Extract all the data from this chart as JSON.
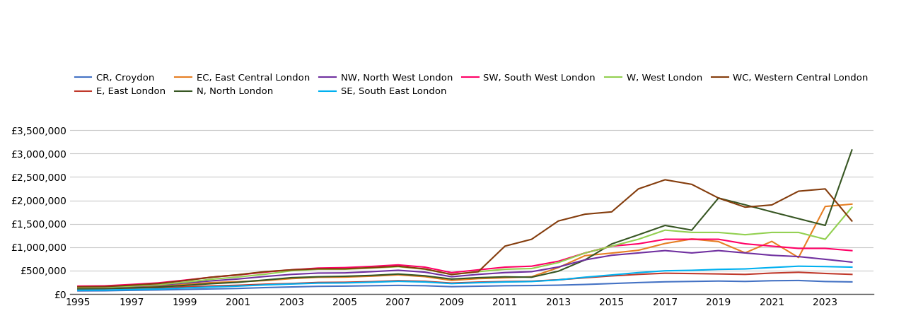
{
  "years": [
    1995,
    1996,
    1997,
    1998,
    1999,
    2000,
    2001,
    2002,
    2003,
    2004,
    2005,
    2006,
    2007,
    2008,
    2009,
    2010,
    2011,
    2012,
    2013,
    2014,
    2015,
    2016,
    2017,
    2018,
    2019,
    2020,
    2021,
    2022,
    2023,
    2024
  ],
  "series": [
    {
      "label": "CR, Croydon",
      "color": "#4472c4",
      "values": [
        68000,
        70000,
        80000,
        88000,
        100000,
        110000,
        120000,
        138000,
        152000,
        165000,
        170000,
        178000,
        185000,
        178000,
        158000,
        168000,
        178000,
        182000,
        190000,
        205000,
        225000,
        245000,
        262000,
        270000,
        278000,
        270000,
        285000,
        290000,
        268000,
        260000
      ]
    },
    {
      "label": "E, East London",
      "color": "#c0392b",
      "values": [
        108000,
        110000,
        122000,
        135000,
        155000,
        172000,
        188000,
        210000,
        225000,
        248000,
        252000,
        265000,
        285000,
        272000,
        235000,
        255000,
        268000,
        275000,
        305000,
        348000,
        388000,
        420000,
        445000,
        438000,
        430000,
        420000,
        448000,
        465000,
        440000,
        420000
      ]
    },
    {
      "label": "EC, East Central London",
      "color": "#e67e22",
      "values": [
        125000,
        130000,
        148000,
        168000,
        208000,
        245000,
        265000,
        288000,
        330000,
        358000,
        362000,
        382000,
        410000,
        372000,
        292000,
        330000,
        348000,
        370000,
        565000,
        820000,
        875000,
        935000,
        1080000,
        1175000,
        1120000,
        880000,
        1125000,
        780000,
        1870000,
        1920000
      ]
    },
    {
      "label": "N, North London",
      "color": "#375623",
      "values": [
        112000,
        115000,
        132000,
        150000,
        185000,
        222000,
        252000,
        300000,
        350000,
        370000,
        380000,
        398000,
        428000,
        390000,
        320000,
        350000,
        368000,
        360000,
        488000,
        730000,
        1070000,
        1265000,
        1465000,
        1365000,
        2050000,
        1905000,
        1755000,
        1610000,
        1465000,
        3075000
      ]
    },
    {
      "label": "NW, North West London",
      "color": "#7030a0",
      "values": [
        138000,
        142000,
        165000,
        190000,
        235000,
        282000,
        322000,
        375000,
        420000,
        448000,
        452000,
        478000,
        508000,
        468000,
        370000,
        420000,
        458000,
        478000,
        578000,
        730000,
        828000,
        878000,
        928000,
        878000,
        928000,
        878000,
        828000,
        800000,
        742000,
        682000
      ]
    },
    {
      "label": "SE, South East London",
      "color": "#00b0f0",
      "values": [
        82000,
        85000,
        97000,
        108000,
        130000,
        152000,
        170000,
        195000,
        215000,
        234000,
        238000,
        253000,
        272000,
        258000,
        224000,
        243000,
        258000,
        268000,
        302000,
        360000,
        408000,
        458000,
        497000,
        507000,
        527000,
        537000,
        567000,
        595000,
        587000,
        575000
      ]
    },
    {
      "label": "SW, South West London",
      "color": "#ff0066",
      "values": [
        170000,
        175000,
        205000,
        238000,
        297000,
        360000,
        408000,
        468000,
        517000,
        555000,
        565000,
        590000,
        623000,
        575000,
        458000,
        517000,
        575000,
        595000,
        700000,
        877000,
        1023000,
        1073000,
        1170000,
        1170000,
        1170000,
        1073000,
        1023000,
        975000,
        975000,
        927000
      ]
    },
    {
      "label": "W, West London",
      "color": "#92d050",
      "values": [
        140000,
        145000,
        170000,
        200000,
        253000,
        316000,
        365000,
        423000,
        497000,
        530000,
        530000,
        555000,
        585000,
        530000,
        418000,
        478000,
        530000,
        545000,
        672000,
        877000,
        1023000,
        1170000,
        1365000,
        1316000,
        1316000,
        1267000,
        1316000,
        1316000,
        1170000,
        1852000
      ]
    },
    {
      "label": "WC, Western Central London",
      "color": "#843c0c",
      "values": [
        155000,
        160000,
        190000,
        224000,
        287000,
        360000,
        413000,
        478000,
        517000,
        540000,
        540000,
        565000,
        595000,
        537000,
        418000,
        478000,
        1023000,
        1170000,
        1560000,
        1705000,
        1755000,
        2245000,
        2440000,
        2342000,
        2050000,
        1855000,
        1903000,
        2196000,
        2245000,
        1560000
      ]
    }
  ],
  "ylim": [
    0,
    3700000
  ],
  "yticks": [
    0,
    500000,
    1000000,
    1500000,
    2000000,
    2500000,
    3000000,
    3500000
  ],
  "ytick_labels": [
    "£0",
    "£500,000",
    "£1,000,000",
    "£1,500,000",
    "£2,000,000",
    "£2,500,000",
    "£3,000,000",
    "£3,500,000"
  ],
  "xtick_start": 1995,
  "xtick_end": 2024,
  "xtick_step": 2,
  "xlim_left": 1994.7,
  "xlim_right": 2024.8,
  "background_color": "#ffffff",
  "grid_color": "#c8c8c8",
  "linewidth": 1.5
}
